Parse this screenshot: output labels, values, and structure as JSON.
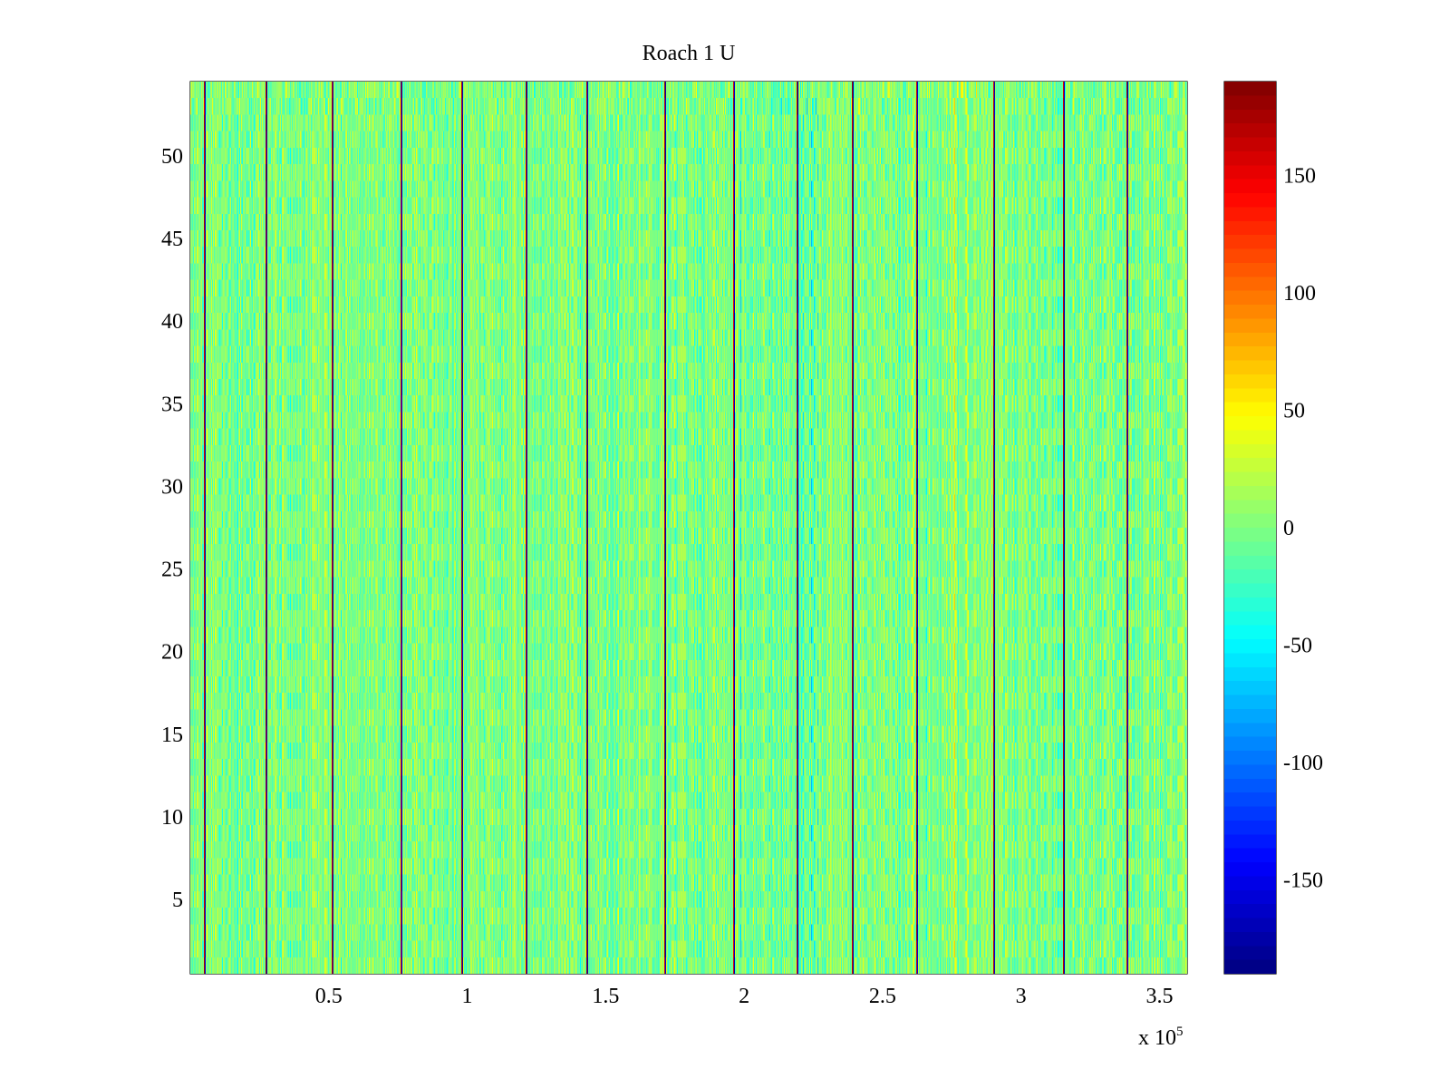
{
  "chart_data": {
    "type": "heatmap",
    "title": "Roach 1 U",
    "colormap": "jet",
    "x_range": [
      0,
      360000
    ],
    "y_range": [
      0.5,
      54.5
    ],
    "x_ticks": [
      50000,
      100000,
      150000,
      200000,
      250000,
      300000,
      350000
    ],
    "x_tick_labels": [
      "0.5",
      "1",
      "1.5",
      "2",
      "2.5",
      "3",
      "3.5"
    ],
    "x_exponent": {
      "prefix": "x 10",
      "power": "5"
    },
    "y_ticks": [
      5,
      10,
      15,
      20,
      25,
      30,
      35,
      40,
      45,
      50
    ],
    "y_tick_labels": [
      "5",
      "10",
      "15",
      "20",
      "25",
      "30",
      "35",
      "40",
      "45",
      "50"
    ],
    "rows": 54,
    "background_range": [
      -40,
      40
    ],
    "stripe_positions": [
      5000,
      27000,
      51000,
      76000,
      98000,
      121000,
      143000,
      171000,
      196000,
      219000,
      239000,
      262000,
      290000,
      315000,
      338000
    ],
    "stripe_values": [
      180,
      -180
    ],
    "colorbar": {
      "range": [
        -190,
        190
      ],
      "ticks": [
        -150,
        -100,
        -50,
        0,
        50,
        100,
        150
      ],
      "tick_labels": [
        "-150",
        "-100",
        "-50",
        "0",
        "50",
        "100",
        "150"
      ]
    }
  }
}
